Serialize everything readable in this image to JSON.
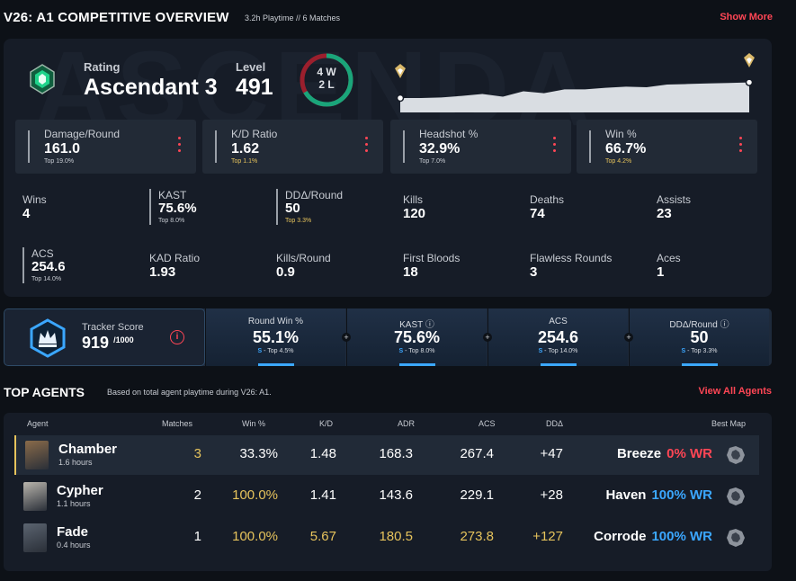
{
  "header": {
    "title": "V26: A1 COMPETITIVE OVERVIEW",
    "sub": "3.2h Playtime  //  6 Matches",
    "show_more": "Show More"
  },
  "overview": {
    "bg_text": "ASCENDA",
    "rating_label": "Rating",
    "rating_value": "Ascendant 3",
    "level_label": "Level",
    "level_value": "491",
    "wins_record": "4 W",
    "losses_record": "2 L",
    "win_fraction": 0.667,
    "rr_history": [
      0.2,
      0.2,
      0.22,
      0.28,
      0.35,
      0.25,
      0.45,
      0.38,
      0.52,
      0.52,
      0.58,
      0.62,
      0.6,
      0.7,
      0.72,
      0.74,
      0.76,
      0.78
    ],
    "stats_main": [
      {
        "label": "Damage/Round",
        "value": "161.0",
        "percentile": "Top 19.0%",
        "tone": "grey"
      },
      {
        "label": "K/D Ratio",
        "value": "1.62",
        "percentile": "Top 1.1%",
        "tone": "gold"
      },
      {
        "label": "Headshot %",
        "value": "32.9%",
        "percentile": "Top 7.0%",
        "tone": "grey"
      },
      {
        "label": "Win %",
        "value": "66.7%",
        "percentile": "Top 4.2%",
        "tone": "gold"
      }
    ],
    "stats_row1": [
      {
        "label": "Wins",
        "value": "4",
        "percentile": "",
        "tone": "grey",
        "bar": false
      },
      {
        "label": "KAST",
        "value": "75.6%",
        "percentile": "Top 8.0%",
        "tone": "grey",
        "bar": true
      },
      {
        "label": "DDΔ/Round",
        "value": "50",
        "percentile": "Top 3.3%",
        "tone": "gold",
        "bar": true
      },
      {
        "label": "Kills",
        "value": "120",
        "percentile": "",
        "tone": "grey",
        "bar": false
      },
      {
        "label": "Deaths",
        "value": "74",
        "percentile": "",
        "tone": "grey",
        "bar": false
      },
      {
        "label": "Assists",
        "value": "23",
        "percentile": "",
        "tone": "grey",
        "bar": false
      }
    ],
    "stats_row2": [
      {
        "label": "ACS",
        "value": "254.6",
        "percentile": "Top 14.0%",
        "tone": "grey",
        "bar": true
      },
      {
        "label": "KAD Ratio",
        "value": "1.93",
        "percentile": "",
        "tone": "grey",
        "bar": false
      },
      {
        "label": "Kills/Round",
        "value": "0.9",
        "percentile": "",
        "tone": "grey",
        "bar": false
      },
      {
        "label": "First Bloods",
        "value": "18",
        "percentile": "",
        "tone": "grey",
        "bar": false
      },
      {
        "label": "Flawless Rounds",
        "value": "3",
        "percentile": "",
        "tone": "grey",
        "bar": false
      },
      {
        "label": "Aces",
        "value": "1",
        "percentile": "",
        "tone": "grey",
        "bar": false
      }
    ]
  },
  "tracker": {
    "label": "Tracker Score",
    "value": "919",
    "max": "/1000",
    "info": "i",
    "cells": [
      {
        "label": "Round Win %",
        "info": false,
        "value": "55.1%",
        "rank": "S",
        "percentile": " - Top 4.5%"
      },
      {
        "label": "KAST",
        "info": true,
        "value": "75.6%",
        "rank": "S",
        "percentile": " - Top 8.0%"
      },
      {
        "label": "ACS",
        "info": false,
        "value": "254.6",
        "rank": "S",
        "percentile": " - Top 14.0%"
      },
      {
        "label": "DDΔ/Round",
        "info": true,
        "value": "50",
        "rank": "S",
        "percentile": " - Top 3.3%"
      }
    ],
    "plus": "+"
  },
  "agents": {
    "title": "TOP AGENTS",
    "subtitle": "Based on total agent playtime during V26: A1.",
    "view_all": "View All Agents",
    "columns": {
      "agent": "Agent",
      "matches": "Matches",
      "win": "Win %",
      "kd": "K/D",
      "adr": "ADR",
      "acs": "ACS",
      "dd": "DDΔ",
      "map": "Best Map"
    },
    "rows": [
      {
        "name": "Chamber",
        "hours": "1.6 hours",
        "matches": "3",
        "win": "33.3%",
        "kd": "1.48",
        "adr": "168.3",
        "acs": "267.4",
        "dd": "+47",
        "map": "Breeze",
        "map_wr": "0% WR",
        "wr_tone": "red",
        "matches_gold": true,
        "win_gold": false,
        "kd_gold": false,
        "adr_gold": false,
        "acs_gold": false,
        "dd_gold": false,
        "avatar_color": "#8a6b4a"
      },
      {
        "name": "Cypher",
        "hours": "1.1 hours",
        "matches": "2",
        "win": "100.0%",
        "kd": "1.41",
        "adr": "143.6",
        "acs": "229.1",
        "dd": "+28",
        "map": "Haven",
        "map_wr": "100% WR",
        "wr_tone": "blue",
        "matches_gold": false,
        "win_gold": true,
        "kd_gold": false,
        "adr_gold": false,
        "acs_gold": false,
        "dd_gold": false,
        "avatar_color": "#b9b5ad"
      },
      {
        "name": "Fade",
        "hours": "0.4 hours",
        "matches": "1",
        "win": "100.0%",
        "kd": "5.67",
        "adr": "180.5",
        "acs": "273.8",
        "dd": "+127",
        "map": "Corrode",
        "map_wr": "100% WR",
        "wr_tone": "blue",
        "matches_gold": false,
        "win_gold": true,
        "kd_gold": true,
        "adr_gold": true,
        "acs_gold": true,
        "dd_gold": true,
        "avatar_color": "#5b6470"
      }
    ]
  }
}
